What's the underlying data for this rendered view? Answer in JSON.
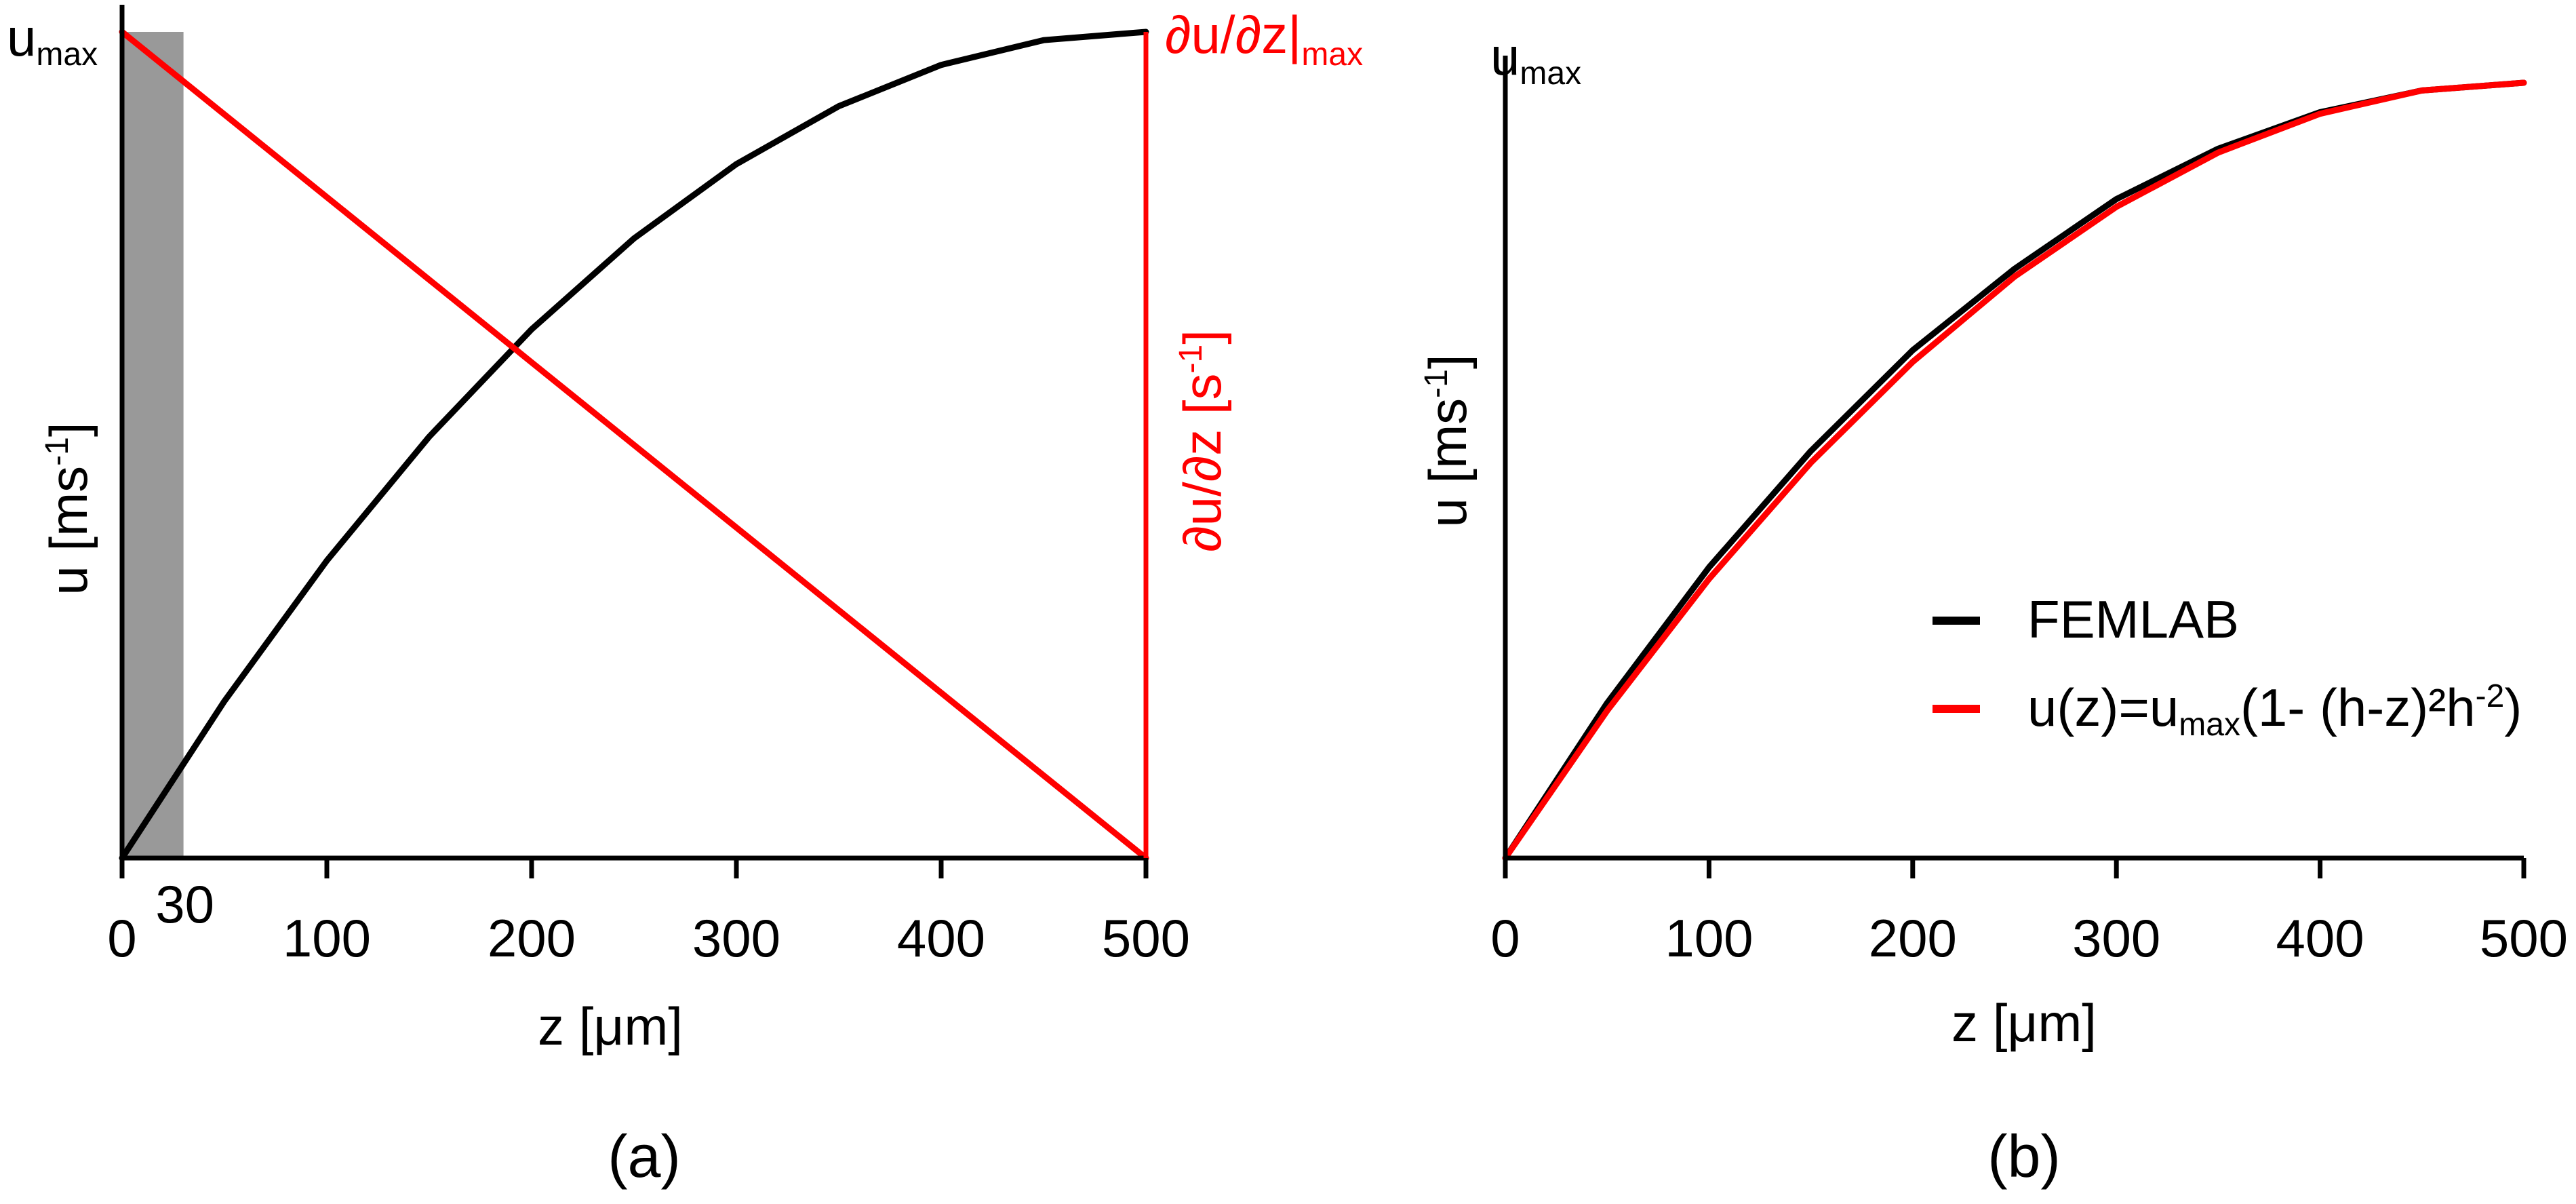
{
  "colors": {
    "profile": "#000000",
    "gradient": "#ff0000",
    "shade": "#999999",
    "shade_label": "#cccccc",
    "axis": "#000000"
  },
  "chart_data": [
    {
      "panel": "(a)",
      "type": "line",
      "xlabel": "z [μm]",
      "ylabel_left": {
        "base": "u [ms",
        "sup": "-1",
        "end": "]"
      },
      "ylabel_right": {
        "base": "∂u/∂z [s",
        "sup": "-1",
        "end": "]"
      },
      "ymax_left_label": {
        "base": "u",
        "sub": "max"
      },
      "ymax_right_label": {
        "base": "∂u/∂z|",
        "sub": "max"
      },
      "xlim": [
        0,
        500
      ],
      "ylim": [
        0,
        1
      ],
      "xticks": [
        0,
        100,
        200,
        300,
        400,
        500
      ],
      "shaded_region": {
        "x": [
          0,
          30
        ],
        "label": "30"
      },
      "grid": false,
      "series": [
        {
          "axis": "left",
          "color": "#000000",
          "x": [
            0,
            50,
            100,
            150,
            200,
            250,
            300,
            350,
            400,
            450,
            500
          ],
          "y": [
            0,
            0.19,
            0.36,
            0.51,
            0.64,
            0.75,
            0.84,
            0.91,
            0.96,
            0.99,
            1.0
          ]
        },
        {
          "axis": "right",
          "color": "#ff0000",
          "x": [
            0,
            100,
            200,
            300,
            400,
            500
          ],
          "y": [
            1.0,
            0.8,
            0.6,
            0.4,
            0.2,
            0.0
          ]
        }
      ]
    },
    {
      "panel": "(b)",
      "type": "line",
      "xlabel": "z [μm]",
      "ylabel": {
        "base": "u [ms",
        "sup": "-1",
        "end": "]"
      },
      "ymax_label": {
        "base": "u",
        "sub": "max"
      },
      "xlim": [
        0,
        500
      ],
      "ylim": [
        0,
        1
      ],
      "xticks": [
        0,
        100,
        200,
        300,
        400,
        500
      ],
      "grid": false,
      "legend": "center-right",
      "series": [
        {
          "name": "FEMLAB",
          "color": "#000000",
          "x": [
            0,
            50,
            100,
            150,
            200,
            250,
            300,
            350,
            400,
            450,
            500
          ],
          "y": [
            0,
            0.2,
            0.375,
            0.525,
            0.655,
            0.76,
            0.85,
            0.915,
            0.962,
            0.99,
            1.0
          ]
        },
        {
          "name": "u(z)=umax(1- (h-z)²h-²)",
          "color": "#ff0000",
          "legend_parts": {
            "a": "u(z)=u",
            "sub": "max",
            "b": "(1- (h-z)²h",
            "sup": "-2",
            "c": ")"
          },
          "x": [
            0,
            50,
            100,
            150,
            200,
            250,
            300,
            350,
            400,
            450,
            500
          ],
          "y": [
            0,
            0.19,
            0.36,
            0.51,
            0.64,
            0.75,
            0.84,
            0.91,
            0.96,
            0.99,
            1.0
          ]
        }
      ]
    }
  ]
}
